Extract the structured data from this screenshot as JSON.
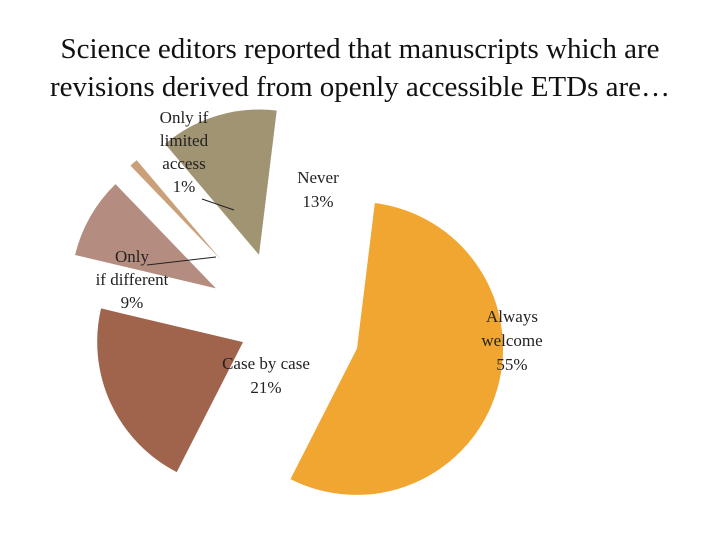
{
  "title_lines": [
    "Science editors reported that manuscripts which are",
    "revisions derived from openly accessible ETDs are…"
  ],
  "chart_data": {
    "type": "pie",
    "title": "Science editors reported that manuscripts which are revisions derived from openly accessible ETDs are…",
    "legend": "none",
    "slices": [
      {
        "category": "Always welcome",
        "value": 55,
        "display": "55%",
        "color": "#F0A630"
      },
      {
        "category": "Case by case",
        "value": 21,
        "display": "21%",
        "color": "#A0644C"
      },
      {
        "category": "Only if different",
        "value": 9,
        "display": "9%",
        "color": "#B58D80"
      },
      {
        "category": "Only if limited access",
        "value": 1,
        "display": "1%",
        "color": "#C9A078"
      },
      {
        "category": "Never",
        "value": 13,
        "display": "13%",
        "color": "#A19473"
      }
    ]
  }
}
